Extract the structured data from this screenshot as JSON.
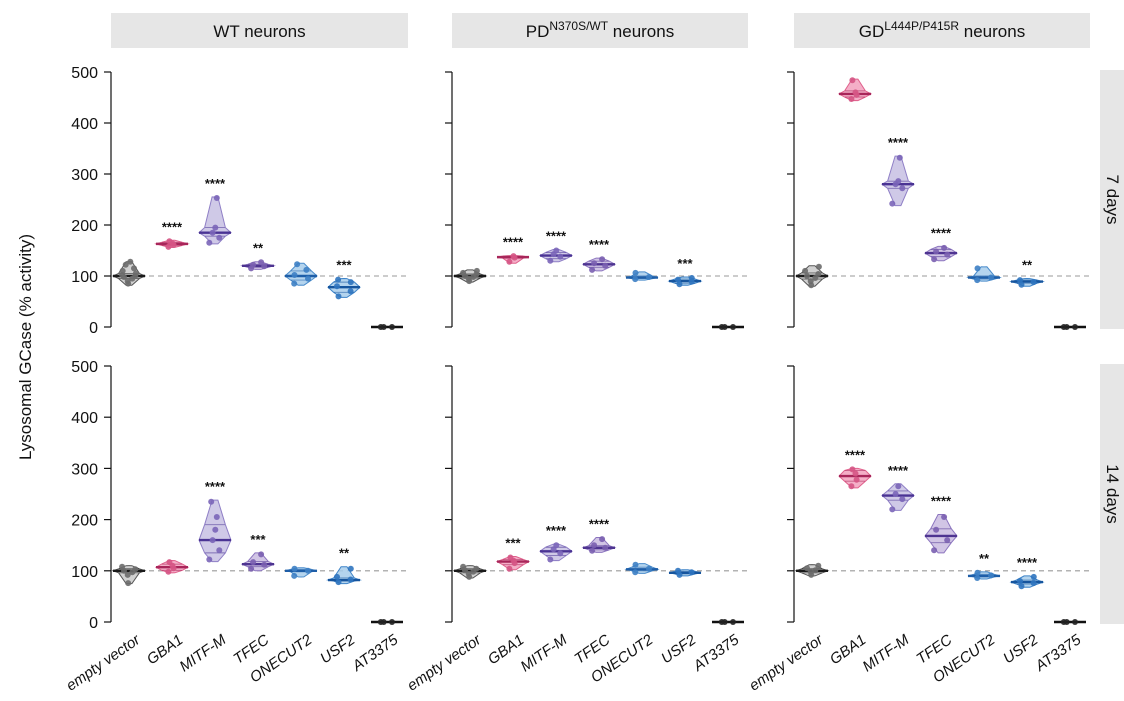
{
  "figure": {
    "y_axis_label": "Lysosomal GCase (% activity)",
    "columns": [
      {
        "base": "WT neurons",
        "sup": "",
        "suffix": ""
      },
      {
        "base": "PD",
        "sup": "N370S/WT",
        "suffix": " neurons"
      },
      {
        "base": "GD",
        "sup": "L444P/P415R",
        "suffix": " neurons"
      }
    ],
    "rows": [
      "7 days",
      "14 days"
    ],
    "categories": [
      "empty vector",
      "GBA1",
      "MITF-M",
      "TFEC",
      "ONECUT2",
      "USF2",
      "AT3375"
    ],
    "colors": {
      "empty vector": {
        "fill": "#c9c9c9",
        "stroke": "#555555",
        "line": "#1a1a1a",
        "dot": "#6b6b6b"
      },
      "GBA1": {
        "fill": "#f2a0bd",
        "stroke": "#e0608c",
        "line": "#a8265a",
        "dot": "#d55484"
      },
      "MITF-M": {
        "fill": "#c7bfe3",
        "stroke": "#8f7fc6",
        "line": "#4a3394",
        "dot": "#7a65b8"
      },
      "TFEC": {
        "fill": "#c9bbe0",
        "stroke": "#8c75bf",
        "line": "#4e3491",
        "dot": "#7a5fb0"
      },
      "ONECUT2": {
        "fill": "#a7cdeb",
        "stroke": "#4a8ccb",
        "line": "#1e5ea8",
        "dot": "#3d7fc4"
      },
      "USF2": {
        "fill": "#a7cdeb",
        "stroke": "#3d83c8",
        "line": "#16559e",
        "dot": "#2f74bf"
      },
      "AT3375": {
        "fill": "#bbbbbb",
        "stroke": "#333333",
        "line": "#111111",
        "dot": "#222222"
      }
    },
    "reference_line": 100,
    "y_ticks": [
      0,
      100,
      200,
      300,
      400,
      500
    ]
  },
  "chart_data": [
    {
      "type": "violin",
      "title": "WT neurons",
      "facet_row": "7 days",
      "ylabel": "Lysosomal GCase (% activity)",
      "ylim": [
        0,
        500
      ],
      "categories": [
        "empty vector",
        "GBA1",
        "MITF-M",
        "TFEC",
        "ONECUT2",
        "USF2",
        "AT3375"
      ],
      "series": [
        {
          "name": "empty vector",
          "median": 100,
          "q1": 95,
          "q3": 105,
          "min": 82,
          "max": 128,
          "points": [
            85,
            90,
            95,
            98,
            100,
            102,
            105,
            110,
            115,
            122,
            128
          ]
        },
        {
          "name": "GBA1",
          "median": 163,
          "q1": 160,
          "q3": 166,
          "min": 156,
          "max": 170,
          "points": [
            157,
            161,
            164,
            168
          ]
        },
        {
          "name": "MITF-M",
          "median": 185,
          "q1": 178,
          "q3": 195,
          "min": 163,
          "max": 255,
          "points": [
            165,
            175,
            185,
            195,
            253
          ]
        },
        {
          "name": "TFEC",
          "median": 120,
          "q1": 117,
          "q3": 123,
          "min": 113,
          "max": 128,
          "points": [
            115,
            119,
            122,
            127
          ]
        },
        {
          "name": "ONECUT2",
          "median": 100,
          "q1": 92,
          "q3": 110,
          "min": 82,
          "max": 125,
          "points": [
            85,
            95,
            102,
            112,
            123
          ]
        },
        {
          "name": "USF2",
          "median": 78,
          "q1": 68,
          "q3": 88,
          "min": 58,
          "max": 95,
          "points": [
            60,
            70,
            80,
            88,
            93
          ]
        },
        {
          "name": "AT3375",
          "median": 0,
          "q1": 0,
          "q3": 0,
          "min": 0,
          "max": 1,
          "points": [
            0,
            0,
            0
          ]
        }
      ],
      "annotations": [
        "",
        "****",
        "****",
        "**",
        "",
        "***",
        ""
      ]
    },
    {
      "type": "violin",
      "title": "PD N370S/WT neurons",
      "facet_row": "7 days",
      "ylim": [
        0,
        500
      ],
      "categories": [
        "empty vector",
        "GBA1",
        "MITF-M",
        "TFEC",
        "ONECUT2",
        "USF2",
        "AT3375"
      ],
      "series": [
        {
          "name": "empty vector",
          "median": 100,
          "q1": 96,
          "q3": 104,
          "min": 88,
          "max": 112,
          "points": [
            90,
            95,
            98,
            100,
            103,
            106,
            110
          ]
        },
        {
          "name": "GBA1",
          "median": 137,
          "q1": 135,
          "q3": 139,
          "min": 125,
          "max": 140,
          "points": [
            128,
            136,
            139
          ]
        },
        {
          "name": "MITF-M",
          "median": 140,
          "q1": 134,
          "q3": 146,
          "min": 128,
          "max": 152,
          "points": [
            130,
            138,
            143,
            150
          ]
        },
        {
          "name": "TFEC",
          "median": 123,
          "q1": 117,
          "q3": 129,
          "min": 110,
          "max": 135,
          "points": [
            112,
            120,
            125,
            133
          ]
        },
        {
          "name": "ONECUT2",
          "median": 97,
          "q1": 95,
          "q3": 100,
          "min": 92,
          "max": 108,
          "points": [
            94,
            98,
            106
          ]
        },
        {
          "name": "USF2",
          "median": 90,
          "q1": 86,
          "q3": 94,
          "min": 82,
          "max": 98,
          "points": [
            84,
            89,
            93,
            96
          ]
        },
        {
          "name": "AT3375",
          "median": 0,
          "q1": 0,
          "q3": 0,
          "min": 0,
          "max": 1,
          "points": [
            0,
            0,
            0
          ]
        }
      ],
      "annotations": [
        "",
        "****",
        "****",
        "****",
        "",
        "***",
        ""
      ]
    },
    {
      "type": "violin",
      "title": "GD L444P/P415R neurons",
      "facet_row": "7 days",
      "ylim": [
        0,
        500
      ],
      "categories": [
        "empty vector",
        "GBA1",
        "MITF-M",
        "TFEC",
        "ONECUT2",
        "USF2",
        "AT3375"
      ],
      "series": [
        {
          "name": "empty vector",
          "median": 100,
          "q1": 94,
          "q3": 106,
          "min": 80,
          "max": 120,
          "points": [
            82,
            90,
            96,
            100,
            104,
            110,
            118
          ]
        },
        {
          "name": "GBA1",
          "median": 457,
          "q1": 451,
          "q3": 463,
          "min": 444,
          "max": 486,
          "points": [
            447,
            455,
            460,
            484
          ]
        },
        {
          "name": "MITF-M",
          "median": 280,
          "q1": 272,
          "q3": 286,
          "min": 238,
          "max": 335,
          "points": [
            242,
            272,
            280,
            286,
            332
          ]
        },
        {
          "name": "TFEC",
          "median": 145,
          "q1": 138,
          "q3": 152,
          "min": 130,
          "max": 158,
          "points": [
            133,
            142,
            148,
            155
          ]
        },
        {
          "name": "ONECUT2",
          "median": 97,
          "q1": 94,
          "q3": 100,
          "min": 90,
          "max": 118,
          "points": [
            92,
            97,
            115
          ]
        },
        {
          "name": "USF2",
          "median": 89,
          "q1": 86,
          "q3": 92,
          "min": 80,
          "max": 95,
          "points": [
            83,
            88,
            92
          ]
        },
        {
          "name": "AT3375",
          "median": 0,
          "q1": 0,
          "q3": 0,
          "min": 0,
          "max": 1,
          "points": [
            0,
            0,
            0
          ]
        }
      ],
      "annotations": [
        "",
        "",
        "****",
        "****",
        "",
        "**",
        ""
      ]
    },
    {
      "type": "violin",
      "title": "WT neurons",
      "facet_row": "14 days",
      "ylabel": "Lysosomal GCase (% activity)",
      "ylim": [
        0,
        500
      ],
      "categories": [
        "empty vector",
        "GBA1",
        "MITF-M",
        "TFEC",
        "ONECUT2",
        "USF2",
        "AT3375"
      ],
      "series": [
        {
          "name": "empty vector",
          "median": 100,
          "q1": 96,
          "q3": 104,
          "min": 75,
          "max": 110,
          "points": [
            76,
            92,
            97,
            100,
            103,
            108
          ]
        },
        {
          "name": "GBA1",
          "median": 107,
          "q1": 101,
          "q3": 113,
          "min": 96,
          "max": 120,
          "points": [
            98,
            105,
            110,
            117
          ]
        },
        {
          "name": "MITF-M",
          "median": 160,
          "q1": 135,
          "q3": 190,
          "min": 118,
          "max": 238,
          "points": [
            122,
            140,
            160,
            180,
            205,
            235
          ]
        },
        {
          "name": "TFEC",
          "median": 113,
          "q1": 108,
          "q3": 118,
          "min": 100,
          "max": 135,
          "points": [
            104,
            112,
            117,
            132
          ]
        },
        {
          "name": "ONECUT2",
          "median": 100,
          "q1": 98,
          "q3": 103,
          "min": 88,
          "max": 106,
          "points": [
            90,
            100,
            104
          ]
        },
        {
          "name": "USF2",
          "median": 82,
          "q1": 80,
          "q3": 86,
          "min": 75,
          "max": 108,
          "points": [
            78,
            83,
            88,
            104
          ]
        },
        {
          "name": "AT3375",
          "median": 0,
          "q1": 0,
          "q3": 0,
          "min": 0,
          "max": 1,
          "points": [
            0,
            0,
            0
          ]
        }
      ],
      "annotations": [
        "",
        "",
        "****",
        "***",
        "",
        "**",
        ""
      ]
    },
    {
      "type": "violin",
      "title": "PD N370S/WT neurons",
      "facet_row": "14 days",
      "ylim": [
        0,
        500
      ],
      "categories": [
        "empty vector",
        "GBA1",
        "MITF-M",
        "TFEC",
        "ONECUT2",
        "USF2",
        "AT3375"
      ],
      "series": [
        {
          "name": "empty vector",
          "median": 100,
          "q1": 96,
          "q3": 104,
          "min": 86,
          "max": 110,
          "points": [
            88,
            94,
            98,
            101,
            104,
            108
          ]
        },
        {
          "name": "GBA1",
          "median": 118,
          "q1": 112,
          "q3": 122,
          "min": 102,
          "max": 128,
          "points": [
            104,
            115,
            120,
            126
          ]
        },
        {
          "name": "MITF-M",
          "median": 138,
          "q1": 130,
          "q3": 146,
          "min": 120,
          "max": 152,
          "points": [
            122,
            134,
            142,
            150
          ]
        },
        {
          "name": "TFEC",
          "median": 145,
          "q1": 141,
          "q3": 149,
          "min": 136,
          "max": 165,
          "points": [
            139,
            145,
            150,
            162
          ]
        },
        {
          "name": "ONECUT2",
          "median": 103,
          "q1": 100,
          "q3": 107,
          "min": 95,
          "max": 114,
          "points": [
            97,
            104,
            112
          ]
        },
        {
          "name": "USF2",
          "median": 96,
          "q1": 94,
          "q3": 99,
          "min": 90,
          "max": 102,
          "points": [
            92,
            97,
            100
          ]
        },
        {
          "name": "AT3375",
          "median": 0,
          "q1": 0,
          "q3": 0,
          "min": 0,
          "max": 1,
          "points": [
            0,
            0,
            0
          ]
        }
      ],
      "annotations": [
        "",
        "***",
        "****",
        "****",
        "",
        "",
        ""
      ]
    },
    {
      "type": "violin",
      "title": "GD L444P/P415R neurons",
      "facet_row": "14 days",
      "ylim": [
        0,
        500
      ],
      "categories": [
        "empty vector",
        "GBA1",
        "MITF-M",
        "TFEC",
        "ONECUT2",
        "USF2",
        "AT3375"
      ],
      "series": [
        {
          "name": "empty vector",
          "median": 100,
          "q1": 96,
          "q3": 104,
          "min": 90,
          "max": 112,
          "points": [
            92,
            98,
            101,
            105,
            110
          ]
        },
        {
          "name": "GBA1",
          "median": 285,
          "q1": 275,
          "q3": 296,
          "min": 262,
          "max": 300,
          "points": [
            265,
            278,
            290,
            298
          ]
        },
        {
          "name": "MITF-M",
          "median": 247,
          "q1": 238,
          "q3": 256,
          "min": 218,
          "max": 270,
          "points": [
            220,
            240,
            250,
            265
          ]
        },
        {
          "name": "TFEC",
          "median": 168,
          "q1": 155,
          "q3": 182,
          "min": 135,
          "max": 210,
          "points": [
            140,
            160,
            180,
            205
          ]
        },
        {
          "name": "ONECUT2",
          "median": 90,
          "q1": 88,
          "q3": 93,
          "min": 84,
          "max": 98,
          "points": [
            86,
            91,
            96
          ]
        },
        {
          "name": "USF2",
          "median": 78,
          "q1": 74,
          "q3": 82,
          "min": 68,
          "max": 90,
          "points": [
            70,
            76,
            80,
            88
          ]
        },
        {
          "name": "AT3375",
          "median": 0,
          "q1": 0,
          "q3": 0,
          "min": 0,
          "max": 1,
          "points": [
            0,
            0,
            0
          ]
        }
      ],
      "annotations": [
        "",
        "****",
        "****",
        "****",
        "**",
        "****",
        ""
      ]
    }
  ]
}
